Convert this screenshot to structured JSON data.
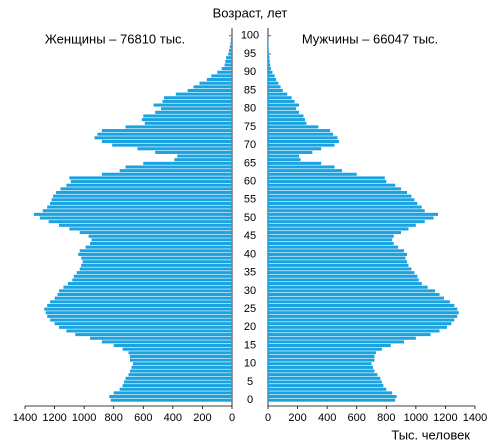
{
  "chart_data": {
    "type": "pyramid",
    "title": "Возраст, лет",
    "x_label": "Тыс. человек",
    "categories": [
      0,
      null,
      null,
      null,
      null,
      5,
      null,
      null,
      null,
      null,
      10,
      null,
      null,
      null,
      null,
      15,
      null,
      null,
      null,
      null,
      20,
      null,
      null,
      null,
      null,
      25,
      null,
      null,
      null,
      null,
      30,
      null,
      null,
      null,
      null,
      35,
      null,
      null,
      null,
      null,
      40,
      null,
      null,
      null,
      null,
      45,
      null,
      null,
      null,
      null,
      50,
      null,
      null,
      null,
      null,
      55,
      null,
      null,
      null,
      null,
      60,
      null,
      null,
      null,
      null,
      65,
      null,
      null,
      null,
      null,
      70,
      null,
      null,
      null,
      null,
      75,
      null,
      null,
      null,
      null,
      80,
      null,
      null,
      null,
      null,
      85,
      null,
      null,
      null,
      null,
      90,
      null,
      null,
      null,
      null,
      95,
      null,
      null,
      null,
      null,
      100
    ],
    "series": [
      {
        "name": "Женщины – 76810 тыс.",
        "color": "#1aa3e0",
        "side": "left",
        "values": [
          820,
          830,
          800,
          760,
          740,
          730,
          720,
          700,
          690,
          680,
          670,
          690,
          690,
          700,
          740,
          800,
          880,
          960,
          1060,
          1120,
          1170,
          1200,
          1230,
          1250,
          1260,
          1270,
          1250,
          1230,
          1200,
          1180,
          1170,
          1140,
          1110,
          1080,
          1070,
          1050,
          1030,
          1020,
          1010,
          1020,
          1040,
          1030,
          990,
          960,
          950,
          970,
          1030,
          1100,
          1170,
          1240,
          1300,
          1340,
          1280,
          1250,
          1230,
          1220,
          1210,
          1190,
          1160,
          1120,
          1090,
          1100,
          880,
          760,
          720,
          600,
          390,
          370,
          520,
          640,
          810,
          880,
          930,
          910,
          880,
          720,
          590,
          610,
          600,
          520,
          480,
          530,
          470,
          460,
          380,
          300,
          260,
          220,
          170,
          140,
          100,
          70,
          50,
          45,
          40,
          25,
          20,
          15,
          10,
          8,
          5
        ]
      },
      {
        "name": "Мужчины – 66047 тыс.",
        "color": "#1aa3e0",
        "side": "right",
        "values": [
          860,
          870,
          840,
          800,
          780,
          770,
          760,
          740,
          720,
          710,
          700,
          720,
          720,
          730,
          770,
          830,
          920,
          1000,
          1100,
          1160,
          1210,
          1240,
          1260,
          1280,
          1290,
          1280,
          1260,
          1230,
          1190,
          1160,
          1130,
          1080,
          1040,
          1020,
          1010,
          990,
          970,
          950,
          940,
          930,
          940,
          920,
          880,
          850,
          840,
          850,
          900,
          950,
          1000,
          1060,
          1120,
          1150,
          1060,
          1040,
          1010,
          990,
          970,
          940,
          900,
          860,
          800,
          790,
          600,
          500,
          450,
          360,
          220,
          210,
          300,
          360,
          450,
          480,
          470,
          440,
          420,
          340,
          260,
          250,
          240,
          210,
          190,
          210,
          180,
          160,
          130,
          100,
          85,
          70,
          55,
          45,
          30,
          20,
          15,
          12,
          10,
          6,
          5,
          4,
          3,
          2,
          1
        ]
      }
    ],
    "xlim": [
      0,
      1400
    ],
    "xticks": [
      0,
      200,
      400,
      600,
      800,
      1000,
      1200,
      1400
    ]
  }
}
